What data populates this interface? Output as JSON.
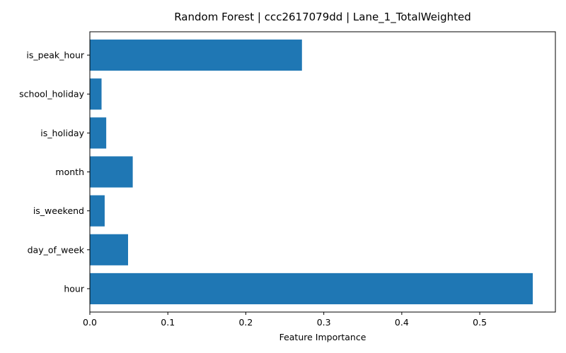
{
  "chart_data": {
    "type": "bar",
    "orientation": "horizontal",
    "title": "Random Forest | ccc2617079dd | Lane_1_TotalWeighted",
    "xlabel": "Feature Importance",
    "ylabel": "",
    "categories": [
      "hour",
      "day_of_week",
      "is_weekend",
      "month",
      "is_holiday",
      "school_holiday",
      "is_peak_hour"
    ],
    "values": [
      0.568,
      0.049,
      0.019,
      0.055,
      0.021,
      0.015,
      0.272
    ],
    "xlim": [
      0,
      0.597
    ],
    "xticks": [
      0.0,
      0.1,
      0.2,
      0.3,
      0.4,
      0.5
    ],
    "xtick_labels": [
      "0.0",
      "0.1",
      "0.2",
      "0.3",
      "0.4",
      "0.5"
    ],
    "grid": false,
    "bar_color": "#1f77b4"
  }
}
